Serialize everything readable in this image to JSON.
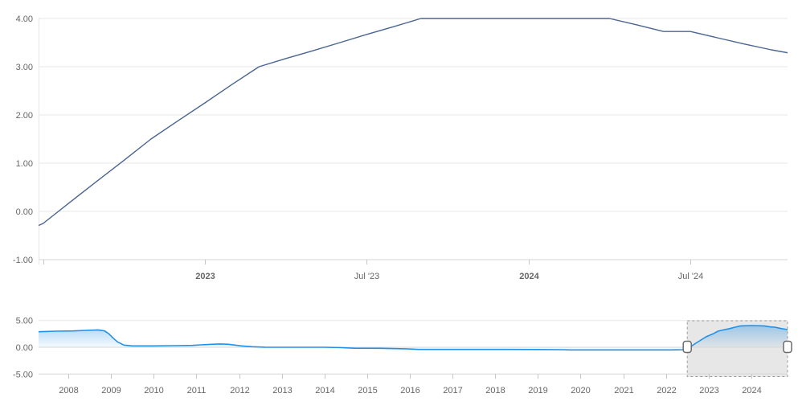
{
  "colors": {
    "background": "#ffffff",
    "main_line": "#4a6591",
    "grid": "#e7e7e7",
    "axis_line": "#d6d6d6",
    "tick": "#c6c6c6",
    "label": "#666666",
    "nav_line": "#2190e8",
    "nav_fill_top": "rgba(33,144,232,0.45)",
    "nav_fill_bottom": "rgba(33,144,232,0.04)",
    "nav_zero_line": "#d9d9d9",
    "region_fill": "#e7e7e7",
    "region_border": "#999999",
    "handle_fill": "#ffffff",
    "handle_border": "#6b6b6b"
  },
  "main_chart": {
    "y_ticks": [
      {
        "value": 4,
        "label": "4.00"
      },
      {
        "value": 3,
        "label": "3.00"
      },
      {
        "value": 2,
        "label": "2.00"
      },
      {
        "value": 1,
        "label": "1.00"
      },
      {
        "value": 0,
        "label": "0.00"
      },
      {
        "value": -1,
        "label": "-1.00"
      }
    ],
    "x_ticks": [
      {
        "t": 2022.5,
        "label": "",
        "bold": false
      },
      {
        "t": 2023.0,
        "label": "2023",
        "bold": true
      },
      {
        "t": 2023.5,
        "label": "Jul '23",
        "bold": false
      },
      {
        "t": 2024.0,
        "label": "2024",
        "bold": true
      },
      {
        "t": 2024.5,
        "label": "Jul '24",
        "bold": false
      }
    ]
  },
  "navigator": {
    "y_ticks": [
      {
        "value": 5,
        "label": "5.00"
      },
      {
        "value": 0,
        "label": "0.00"
      },
      {
        "value": -5,
        "label": "-5.00"
      }
    ],
    "x_ticks": [
      {
        "t": 2008,
        "label": "2008"
      },
      {
        "t": 2009,
        "label": "2009"
      },
      {
        "t": 2010,
        "label": "2010"
      },
      {
        "t": 2011,
        "label": "2011"
      },
      {
        "t": 2012,
        "label": "2012"
      },
      {
        "t": 2013,
        "label": "2013"
      },
      {
        "t": 2014,
        "label": "2014"
      },
      {
        "t": 2015,
        "label": "2015"
      },
      {
        "t": 2016,
        "label": "2016"
      },
      {
        "t": 2017,
        "label": "2017"
      },
      {
        "t": 2018,
        "label": "2018"
      },
      {
        "t": 2019,
        "label": "2019"
      },
      {
        "t": 2020,
        "label": "2020"
      },
      {
        "t": 2021,
        "label": "2021"
      },
      {
        "t": 2022,
        "label": "2022"
      },
      {
        "t": 2023,
        "label": "2023"
      },
      {
        "t": 2024,
        "label": "2024"
      }
    ],
    "selected_range": [
      2022.5,
      2024.85
    ]
  },
  "chart_data": [
    {
      "type": "line",
      "title": "",
      "xlabel": "",
      "ylabel": "",
      "xlim": [
        2022.486,
        2024.8
      ],
      "ylim": [
        -1,
        4
      ],
      "grid": true,
      "points": [
        [
          2022.417,
          -0.5
        ],
        [
          2022.5,
          -0.25
        ],
        [
          2022.583,
          0.19
        ],
        [
          2022.667,
          0.63
        ],
        [
          2022.75,
          1.06
        ],
        [
          2022.833,
          1.5
        ],
        [
          2022.917,
          1.88
        ],
        [
          2023.0,
          2.25
        ],
        [
          2023.083,
          2.63
        ],
        [
          2023.167,
          3.0
        ],
        [
          2023.25,
          3.17
        ],
        [
          2023.333,
          3.33
        ],
        [
          2023.417,
          3.5
        ],
        [
          2023.5,
          3.67
        ],
        [
          2023.583,
          3.83
        ],
        [
          2023.667,
          4.0
        ],
        [
          2023.75,
          4.0
        ],
        [
          2023.833,
          4.0
        ],
        [
          2023.917,
          4.0
        ],
        [
          2024.0,
          4.0
        ],
        [
          2024.083,
          4.0
        ],
        [
          2024.167,
          4.0
        ],
        [
          2024.25,
          4.0
        ],
        [
          2024.333,
          3.87
        ],
        [
          2024.417,
          3.73
        ],
        [
          2024.5,
          3.73
        ],
        [
          2024.583,
          3.6
        ],
        [
          2024.667,
          3.47
        ],
        [
          2024.75,
          3.35
        ],
        [
          2024.833,
          3.25
        ]
      ]
    },
    {
      "type": "area",
      "title": "",
      "xlabel": "",
      "ylabel": "",
      "xlim": [
        2007.3,
        2024.85
      ],
      "ylim": [
        -5,
        5
      ],
      "grid": true,
      "points": [
        [
          2007.3,
          2.9
        ],
        [
          2007.7,
          3.0
        ],
        [
          2008.1,
          3.05
        ],
        [
          2008.4,
          3.15
        ],
        [
          2008.7,
          3.25
        ],
        [
          2008.85,
          3.05
        ],
        [
          2008.95,
          2.5
        ],
        [
          2009.05,
          1.7
        ],
        [
          2009.15,
          1.0
        ],
        [
          2009.3,
          0.4
        ],
        [
          2009.5,
          0.25
        ],
        [
          2010.0,
          0.25
        ],
        [
          2010.5,
          0.3
        ],
        [
          2010.9,
          0.35
        ],
        [
          2011.1,
          0.45
        ],
        [
          2011.35,
          0.55
        ],
        [
          2011.55,
          0.62
        ],
        [
          2011.75,
          0.55
        ],
        [
          2011.9,
          0.4
        ],
        [
          2012.05,
          0.25
        ],
        [
          2012.3,
          0.1
        ],
        [
          2012.6,
          0.02
        ],
        [
          2013.0,
          0.0
        ],
        [
          2013.5,
          0.0
        ],
        [
          2014.0,
          0.0
        ],
        [
          2014.4,
          -0.08
        ],
        [
          2014.7,
          -0.18
        ],
        [
          2015.3,
          -0.2
        ],
        [
          2015.9,
          -0.28
        ],
        [
          2016.2,
          -0.4
        ],
        [
          2017.0,
          -0.4
        ],
        [
          2018.0,
          -0.4
        ],
        [
          2019.0,
          -0.42
        ],
        [
          2019.6,
          -0.45
        ],
        [
          2019.75,
          -0.5
        ],
        [
          2020.5,
          -0.5
        ],
        [
          2021.3,
          -0.5
        ],
        [
          2022.1,
          -0.5
        ],
        [
          2022.45,
          -0.45
        ],
        [
          2022.56,
          0.0
        ],
        [
          2022.7,
          0.75
        ],
        [
          2022.85,
          1.5
        ],
        [
          2022.95,
          2.0
        ],
        [
          2023.1,
          2.5
        ],
        [
          2023.22,
          3.0
        ],
        [
          2023.35,
          3.25
        ],
        [
          2023.5,
          3.5
        ],
        [
          2023.62,
          3.75
        ],
        [
          2023.75,
          4.0
        ],
        [
          2024.0,
          4.05
        ],
        [
          2024.3,
          4.0
        ],
        [
          2024.45,
          3.8
        ],
        [
          2024.55,
          3.75
        ],
        [
          2024.7,
          3.5
        ],
        [
          2024.85,
          3.3
        ]
      ]
    }
  ]
}
